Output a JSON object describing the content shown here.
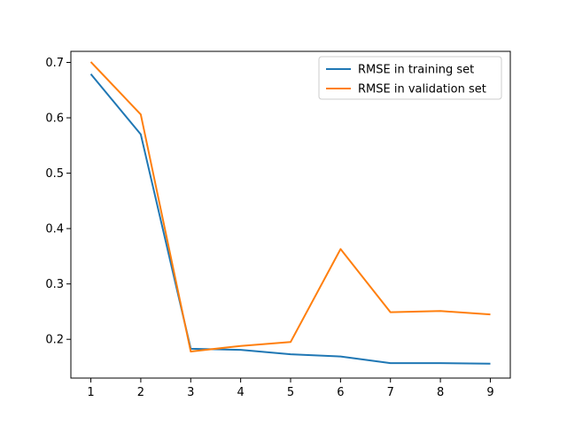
{
  "chart_data": {
    "type": "line",
    "title": "",
    "xlabel": "",
    "ylabel": "",
    "x": [
      1,
      2,
      3,
      4,
      5,
      6,
      7,
      8,
      9
    ],
    "xticks": [
      "1",
      "2",
      "3",
      "4",
      "5",
      "6",
      "7",
      "8",
      "9"
    ],
    "xlim": [
      0.6,
      9.4
    ],
    "ylim": [
      0.13,
      0.72
    ],
    "yticks": [
      0.2,
      0.3,
      0.4,
      0.5,
      0.6,
      0.7
    ],
    "ytick_labels": [
      "0.2",
      "0.3",
      "0.4",
      "0.5",
      "0.6",
      "0.7"
    ],
    "grid": false,
    "legend_position": "top-right",
    "series": [
      {
        "name": "RMSE in training set",
        "color": "#1f77b4",
        "values": [
          0.679,
          0.57,
          0.183,
          0.181,
          0.173,
          0.169,
          0.157,
          0.157,
          0.156
        ]
      },
      {
        "name": "RMSE in validation set",
        "color": "#ff7f0e",
        "values": [
          0.701,
          0.606,
          0.178,
          0.188,
          0.195,
          0.363,
          0.249,
          0.251,
          0.245
        ]
      }
    ]
  }
}
